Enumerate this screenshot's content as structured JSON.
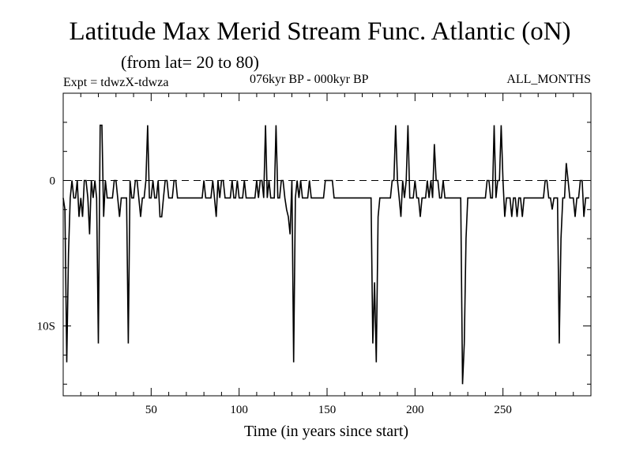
{
  "header": {
    "title": "Latitude Max Merid Stream Func. Atlantic (oN)",
    "subtitle": "(from lat= 20 to 80)",
    "expt": "Expt = tdwzX-tdwza",
    "period": "076kyr BP - 000kyr BP",
    "months": "ALL_MONTHS"
  },
  "chart_data": {
    "type": "line",
    "title": "Latitude Max Merid Stream Func. Atlantic (oN)",
    "xlabel": "Time (in years since start)",
    "ylabel": "",
    "xlim": [
      0,
      300
    ],
    "ylim": [
      -14.8,
      6
    ],
    "x_ticks": [
      50,
      100,
      150,
      200,
      250
    ],
    "x_tick_labels": [
      "50",
      "100",
      "150",
      "200",
      "250"
    ],
    "y_ticks": [
      0,
      -10
    ],
    "y_tick_labels": [
      "0",
      "10S"
    ],
    "reference_line": {
      "y": 0,
      "style": "dashed"
    },
    "grid": false,
    "series": [
      {
        "x": [
          0,
          1,
          2,
          3,
          4,
          5,
          6,
          7,
          8,
          9,
          10,
          11,
          12,
          13,
          14,
          15,
          16,
          17,
          18,
          19,
          20,
          21,
          22,
          23,
          24,
          25,
          26,
          27,
          28,
          29,
          30,
          31,
          32,
          33,
          34,
          35,
          36,
          37,
          38,
          39,
          40,
          41,
          42,
          43,
          44,
          45,
          46,
          47,
          48,
          49,
          50,
          51,
          52,
          53,
          54,
          55,
          56,
          57,
          58,
          59,
          60,
          61,
          62,
          63,
          64,
          65,
          66,
          67,
          68,
          69,
          70,
          71,
          72,
          73,
          74,
          75,
          76,
          77,
          78,
          79,
          80,
          81,
          82,
          83,
          84,
          85,
          86,
          87,
          88,
          89,
          90,
          91,
          92,
          93,
          94,
          95,
          96,
          97,
          98,
          99,
          100,
          101,
          102,
          103,
          104,
          105,
          106,
          107,
          108,
          109,
          110,
          111,
          112,
          113,
          114,
          115,
          116,
          117,
          118,
          119,
          120,
          121,
          122,
          123,
          124,
          125,
          126,
          127,
          128,
          129,
          130,
          131,
          132,
          133,
          134,
          135,
          136,
          137,
          138,
          139,
          140,
          141,
          142,
          143,
          144,
          145,
          146,
          147,
          148,
          149,
          150,
          151,
          152,
          153,
          154,
          155,
          156,
          157,
          158,
          159,
          160,
          161,
          162,
          163,
          164,
          165,
          166,
          167,
          168,
          169,
          170,
          171,
          172,
          173,
          174,
          175,
          176,
          177,
          178,
          179,
          180,
          181,
          182,
          183,
          184,
          185,
          186,
          187,
          188,
          189,
          190,
          191,
          192,
          193,
          194,
          195,
          196,
          197,
          198,
          199,
          200,
          201,
          202,
          203,
          204,
          205,
          206,
          207,
          208,
          209,
          210,
          211,
          212,
          213,
          214,
          215,
          216,
          217,
          218,
          219,
          220,
          221,
          222,
          223,
          224,
          225,
          226,
          227,
          228,
          229,
          230,
          231,
          232,
          233,
          234,
          235,
          236,
          237,
          238,
          239,
          240,
          241,
          242,
          243,
          244,
          245,
          246,
          247,
          248,
          249,
          250,
          251,
          252,
          253,
          254,
          255,
          256,
          257,
          258,
          259,
          260,
          261,
          262,
          263,
          264,
          265,
          266,
          267,
          268,
          269,
          270,
          271,
          272,
          273,
          274,
          275,
          276,
          277,
          278,
          279,
          280,
          281,
          282,
          283,
          284,
          285,
          286,
          287,
          288,
          289,
          290,
          291,
          292,
          293,
          294,
          295,
          296,
          297,
          298,
          299
        ],
        "y": [
          -1.2,
          -2.0,
          -12.5,
          -5.0,
          -1.2,
          0,
          -1.2,
          -1.2,
          0,
          -2.5,
          -1.2,
          -2.5,
          0,
          0,
          -1.2,
          -3.7,
          0,
          -1.2,
          0,
          -1.2,
          -11.2,
          3.8,
          3.8,
          -2.5,
          0,
          -1.2,
          -1.2,
          -1.2,
          -1.2,
          0,
          0,
          -1.2,
          -2.5,
          -1.2,
          -1.2,
          -1.2,
          -1.2,
          -11.2,
          0,
          -1.2,
          -1.2,
          0,
          0,
          -1.2,
          -2.5,
          -1.2,
          -1.2,
          0,
          3.8,
          -1.2,
          -1.2,
          0,
          -1.2,
          -1.2,
          0,
          -2.5,
          -2.5,
          -1.2,
          0,
          0,
          -1.2,
          -1.2,
          -1.2,
          0,
          0,
          -1.2,
          -1.2,
          -1.2,
          -1.2,
          -1.2,
          -1.2,
          -1.2,
          -1.2,
          -1.2,
          -1.2,
          -1.2,
          -1.2,
          -1.2,
          -1.2,
          -1.2,
          0,
          -1.2,
          -1.2,
          -1.2,
          -1.2,
          0,
          -1.2,
          -2.5,
          0,
          -1.2,
          0,
          0,
          -1.2,
          -1.2,
          -1.2,
          -1.2,
          0,
          -1.2,
          -1.2,
          0,
          -1.2,
          -1.2,
          -1.2,
          0,
          -1.2,
          -1.2,
          -1.2,
          -1.2,
          -1.2,
          -1.2,
          0,
          -1.2,
          0,
          0,
          -1.2,
          3.8,
          -1.2,
          0,
          -1.2,
          -1.2,
          -1.2,
          3.8,
          -1.2,
          -1.2,
          0,
          0,
          -1.2,
          -2.0,
          -2.5,
          -3.7,
          0,
          -12.5,
          -1.2,
          0,
          -1.2,
          0,
          -1.2,
          -1.2,
          -1.2,
          -1.2,
          0,
          -1.2,
          -1.2,
          -1.2,
          -1.2,
          -1.2,
          -1.2,
          -1.2,
          -1.2,
          0,
          0,
          0,
          0,
          0,
          -1.2,
          -1.2,
          -1.2,
          -1.2,
          -1.2,
          -1.2,
          -1.2,
          -1.2,
          -1.2,
          -1.2,
          -1.2,
          -1.2,
          -1.2,
          -1.2,
          -1.2,
          -1.2,
          -1.2,
          -1.2,
          -1.2,
          -1.2,
          -1.2,
          -1.2,
          -11.2,
          -7.0,
          -12.5,
          -2.5,
          -1.2,
          -1.2,
          -1.2,
          -1.2,
          -1.2,
          -1.2,
          -1.2,
          0,
          0,
          3.8,
          0,
          -1.2,
          -2.5,
          0,
          -1.2,
          0,
          3.8,
          -1.2,
          -1.2,
          -1.2,
          0,
          -1.2,
          -1.2,
          -2.5,
          -1.2,
          -1.2,
          -1.2,
          0,
          -1.2,
          0,
          -1.2,
          2.5,
          0,
          0,
          -1.2,
          -1.2,
          0,
          -1.2,
          -1.2,
          -1.2,
          -1.2,
          -1.2,
          -1.2,
          -1.2,
          -1.2,
          -1.2,
          -1.2,
          -14.0,
          -11.2,
          -4.0,
          -1.2,
          -1.2,
          -1.2,
          -1.2,
          -1.2,
          -1.2,
          -1.2,
          -1.2,
          -1.2,
          -1.2,
          -1.2,
          0,
          0,
          -1.2,
          -1.2,
          3.8,
          -1.2,
          0,
          0,
          3.8,
          0,
          -2.5,
          -1.2,
          -1.2,
          -1.2,
          -2.5,
          -1.2,
          -1.2,
          -2.5,
          -1.2,
          -1.2,
          -2.5,
          -1.2,
          -1.2,
          -1.2,
          -1.2,
          -1.2,
          -1.2,
          -1.2,
          -1.2,
          -1.2,
          -1.2,
          -1.2,
          -1.2,
          0,
          0,
          -1.2,
          -1.2,
          -2.0,
          -1.2,
          -1.2,
          -1.2,
          -11.2,
          -4.0,
          -1.2,
          -1.2,
          1.2,
          0,
          -1.2,
          -1.2,
          -1.2,
          -2.5,
          -1.2,
          -1.2,
          0,
          0,
          -2.5,
          -1.2,
          -1.2,
          -1.2
        ]
      }
    ]
  }
}
